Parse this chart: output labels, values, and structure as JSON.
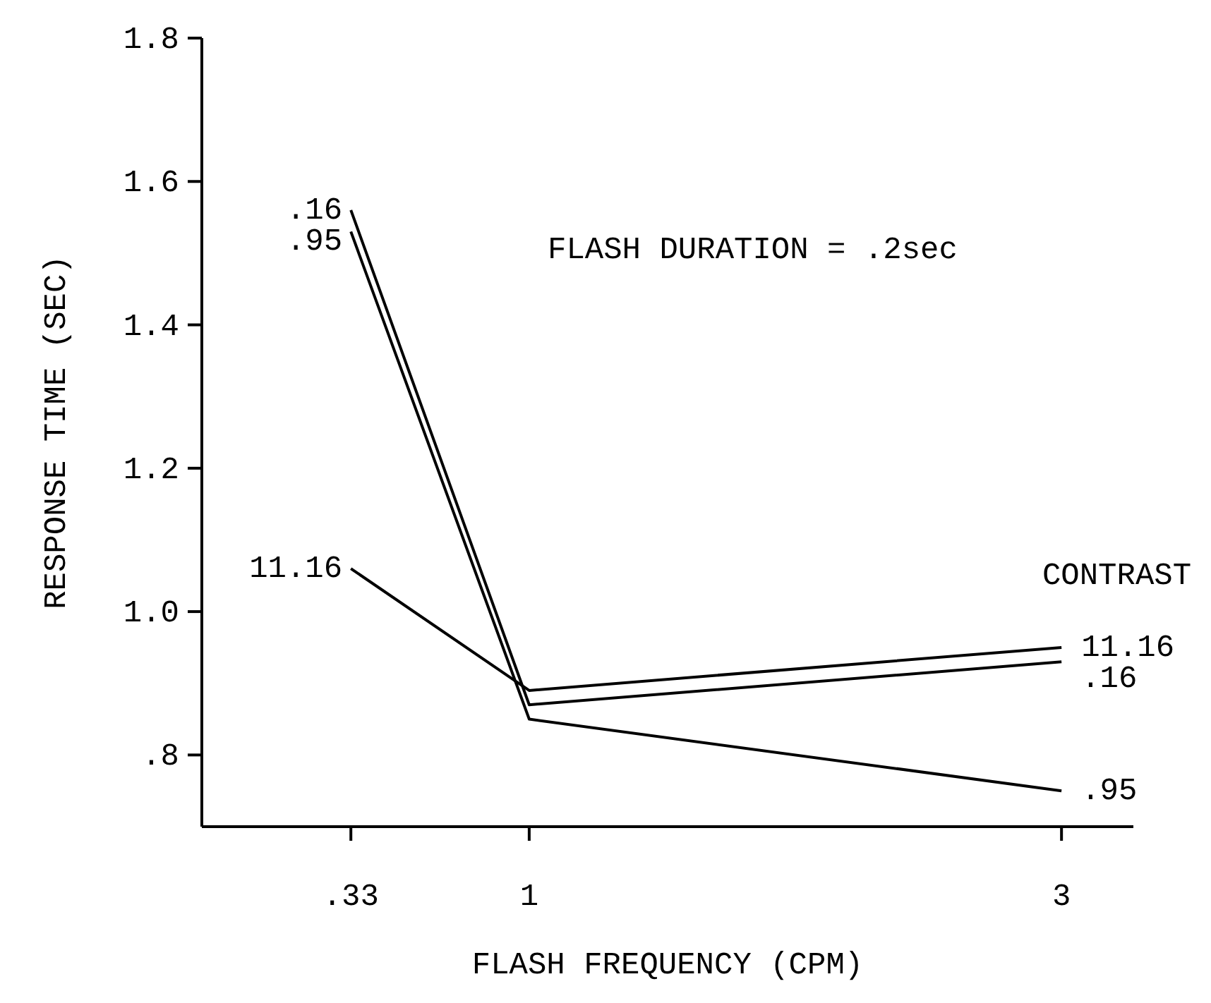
{
  "chart_data": {
    "type": "line",
    "xlabel": "FLASH FREQUENCY (CPM)",
    "ylabel": "RESPONSE TIME (SEC)",
    "legend_title": "CONTRAST",
    "annotations": [
      "FLASH DURATION = .2sec"
    ],
    "x": [
      0.33,
      1,
      3
    ],
    "series": [
      {
        "name": ".16",
        "color": "#000000",
        "values": [
          1.56,
          0.87,
          0.93
        ]
      },
      {
        "name": ".95",
        "color": "#000000",
        "values": [
          1.53,
          0.85,
          0.75
        ]
      },
      {
        "name": "11.16",
        "color": "#000000",
        "values": [
          1.06,
          0.89,
          0.95
        ]
      }
    ],
    "xlim": [
      -0.23,
      3.27
    ],
    "ylim": [
      0.7,
      1.8
    ],
    "xticks": [
      {
        "value": 0.33,
        "label": ".33"
      },
      1,
      3
    ],
    "yticks": [
      {
        "value": 0.8,
        "label": ".8"
      },
      {
        "value": 1.0,
        "label": "1.0"
      },
      1.2,
      1.4,
      1.6,
      1.8
    ],
    "grid": false,
    "marker": "none",
    "line_style": "solid"
  }
}
